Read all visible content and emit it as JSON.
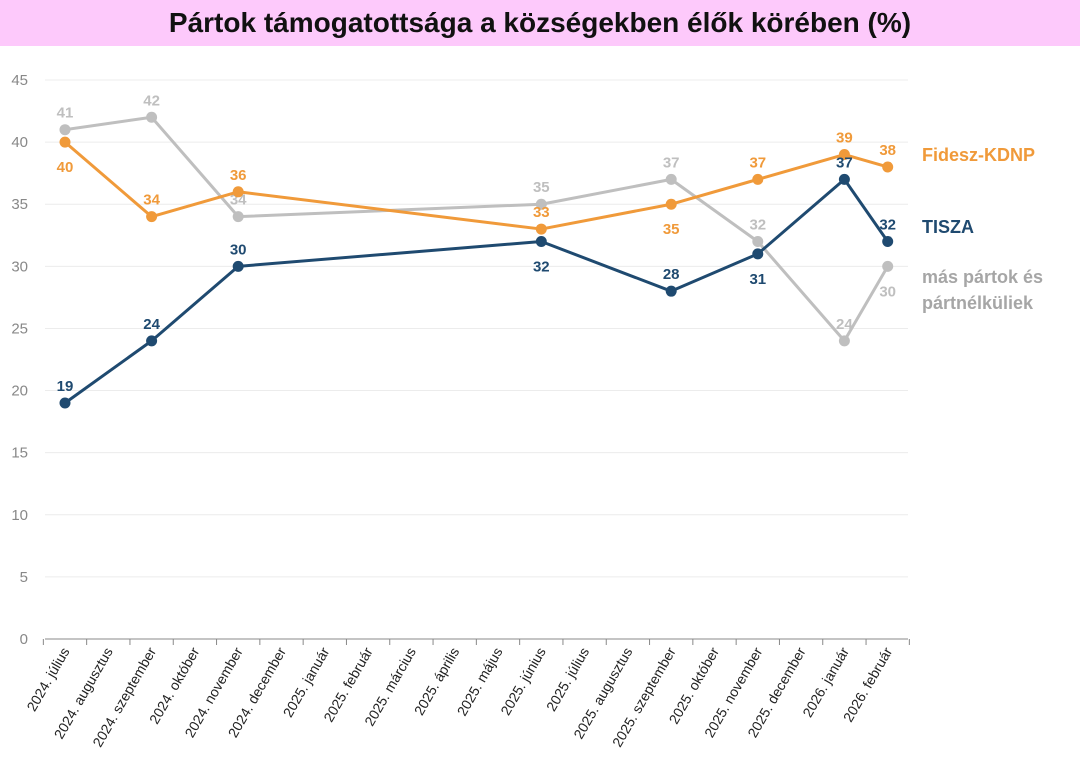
{
  "chart_data": {
    "type": "line",
    "title": "Pártok támogatottsága a községekben élők körében (%)",
    "xlabel": "",
    "ylabel": "",
    "ylim": [
      0,
      45
    ],
    "yticks": [
      0,
      5,
      10,
      15,
      20,
      25,
      30,
      35,
      40,
      45
    ],
    "grid": true,
    "legend_placement": "right",
    "categories": [
      "2024. július",
      "2024. augusztus",
      "2024. szeptember",
      "2024. október",
      "2024. november",
      "2024. december",
      "2025. január",
      "2025. február",
      "2025. március",
      "2025. április",
      "2025. május",
      "2025. június",
      "2025. július",
      "2025. augusztus",
      "2025. szeptember",
      "2025. október",
      "2025. november",
      "2025. december",
      "2026. január",
      "2026. február"
    ],
    "series": [
      {
        "name": "Fidesz-KDNP",
        "color": "#f09a3a",
        "points": [
          [
            "2024. július",
            40,
            "below"
          ],
          [
            "2024. szeptember",
            34,
            "above"
          ],
          [
            "2024. november",
            36,
            "above"
          ],
          [
            "2025. június",
            33,
            "above"
          ],
          [
            "2025. szeptember",
            35,
            "below"
          ],
          [
            "2025. november",
            37,
            "above"
          ],
          [
            "2026. január",
            39,
            "above"
          ],
          [
            "2026. február",
            38,
            "above"
          ]
        ]
      },
      {
        "name": "TISZA",
        "color": "#1f4a70",
        "points": [
          [
            "2024. július",
            19,
            "above"
          ],
          [
            "2024. szeptember",
            24,
            "above"
          ],
          [
            "2024. november",
            30,
            "above"
          ],
          [
            "2025. június",
            32,
            "below"
          ],
          [
            "2025. szeptember",
            28,
            "above"
          ],
          [
            "2025. november",
            31,
            "below"
          ],
          [
            "2026. január",
            37,
            "above"
          ],
          [
            "2026. február",
            32,
            "above"
          ]
        ]
      },
      {
        "name": "más pártok és pártnélküliek",
        "legend_lines": [
          "más pártok és",
          "pártnélküliek"
        ],
        "color": "#bfbfbf",
        "points": [
          [
            "2024. július",
            41,
            "above"
          ],
          [
            "2024. szeptember",
            42,
            "above"
          ],
          [
            "2024. november",
            34,
            "above"
          ],
          [
            "2025. június",
            35,
            "above"
          ],
          [
            "2025. szeptember",
            37,
            "above"
          ],
          [
            "2025. november",
            32,
            "above"
          ],
          [
            "2026. január",
            24,
            "above"
          ],
          [
            "2026. február",
            30,
            "below"
          ]
        ]
      }
    ]
  }
}
